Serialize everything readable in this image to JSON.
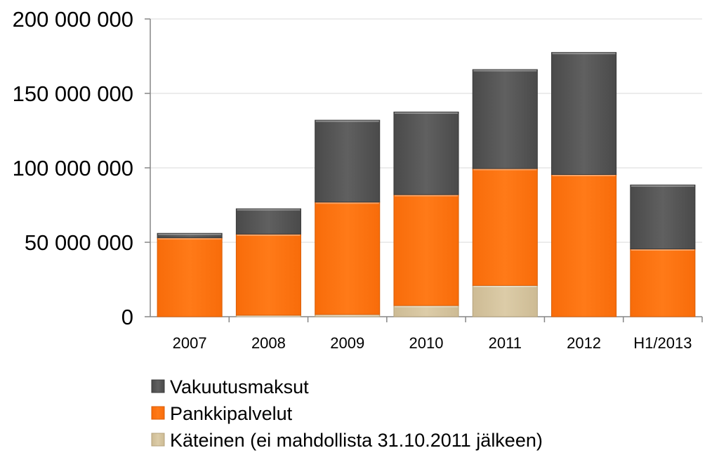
{
  "chart_data": {
    "type": "bar",
    "stacked": true,
    "categories": [
      "2007",
      "2008",
      "2009",
      "2010",
      "2011",
      "2012",
      "H1/2013"
    ],
    "series": [
      {
        "name": "Käteinen (ei mahdollista 31.10.2011 jälkeen)",
        "color": "#D7C6A0",
        "values": [
          0,
          1000000,
          1500000,
          7500000,
          21000000,
          0,
          0
        ]
      },
      {
        "name": "Pankkipalvelut",
        "color": "#FF7310",
        "values": [
          53000000,
          54500000,
          75500000,
          74500000,
          78500000,
          95500000,
          45500000
        ]
      },
      {
        "name": "Vakuutusmaksut",
        "color": "#5A5A5A",
        "values": [
          3000000,
          17000000,
          55000000,
          55500000,
          66500000,
          82000000,
          43000000
        ]
      }
    ],
    "ylim": [
      0,
      200000000
    ],
    "yticks": [
      0,
      50000000,
      100000000,
      150000000,
      200000000
    ],
    "ytick_labels": [
      "0",
      "50 000 000",
      "100 000 000",
      "150 000 000",
      "200 000 000"
    ],
    "grid": true,
    "legend": {
      "placement": "bottom",
      "order": [
        "Vakuutusmaksut",
        "Pankkipalvelut",
        "Käteinen (ei mahdollista 31.10.2011 jälkeen)"
      ]
    }
  }
}
